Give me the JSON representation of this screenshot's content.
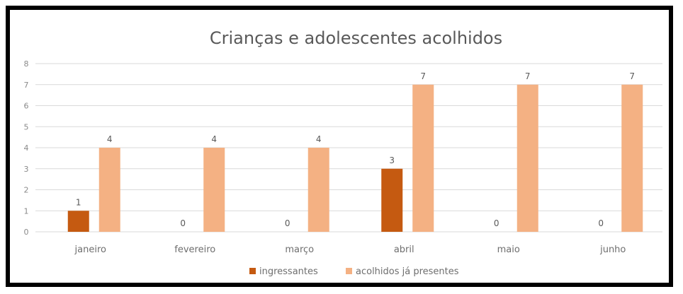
{
  "chart_data": {
    "type": "bar",
    "title": "Crianças e adolescentes acolhidos",
    "xlabel": "",
    "ylabel": "",
    "categories": [
      "janeiro",
      "fevereiro",
      "março",
      "abril",
      "maio",
      "junho"
    ],
    "series": [
      {
        "name": "ingressantes",
        "values": [
          1,
          0,
          0,
          3,
          0,
          0
        ],
        "color": "#c55a11"
      },
      {
        "name": "acolhidos já presentes",
        "values": [
          4,
          4,
          4,
          7,
          7,
          7
        ],
        "color": "#f4b183"
      }
    ],
    "ylim": [
      0,
      8
    ],
    "yticks": [
      0,
      1,
      2,
      3,
      4,
      5,
      6,
      7,
      8
    ],
    "grid": true,
    "legend": "bottom",
    "gridline_color": "#d9d9d9"
  }
}
